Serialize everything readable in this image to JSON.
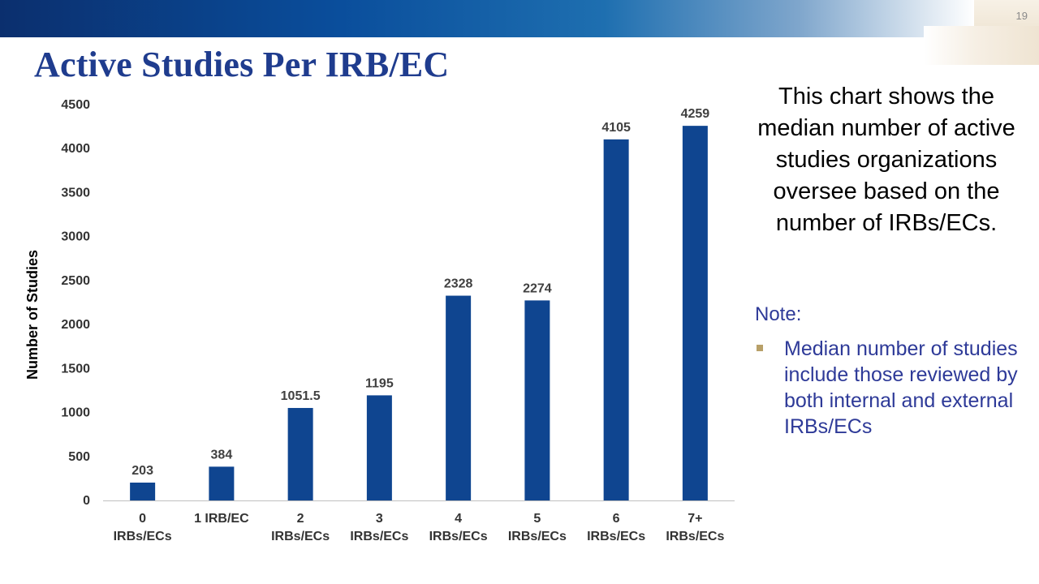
{
  "slide": {
    "number": "19",
    "title": "Active Studies Per IRB/EC"
  },
  "description": "This chart shows the median number of active studies organizations oversee based on the number of IRBs/ECs.",
  "note": {
    "heading": "Note:",
    "bullet": "Median number of studies include those reviewed by both internal and external IRBs/ECs"
  },
  "colors": {
    "bar": "#0f4590",
    "title": "#1f3c8e",
    "note_text": "#2e3a98",
    "bullet": "#b8a068"
  },
  "chart_data": {
    "type": "bar",
    "title": "",
    "xlabel": "",
    "ylabel": "Number of Studies",
    "ylim": [
      0,
      4500
    ],
    "yticks": [
      0,
      500,
      1000,
      1500,
      2000,
      2500,
      3000,
      3500,
      4000,
      4500
    ],
    "grid": false,
    "legend": "none",
    "categories": [
      [
        "0",
        "IRBs/ECs"
      ],
      [
        "1 IRB/EC"
      ],
      [
        "2",
        "IRBs/ECs"
      ],
      [
        "3",
        "IRBs/ECs"
      ],
      [
        "4",
        "IRBs/ECs"
      ],
      [
        "5",
        "IRBs/ECs"
      ],
      [
        "6",
        "IRBs/ECs"
      ],
      [
        "7+",
        "IRBs/ECs"
      ]
    ],
    "values": [
      203,
      384,
      1051.5,
      1195,
      2328,
      2274,
      4105,
      4259
    ],
    "data_labels": [
      "203",
      "384",
      "1051.5",
      "1195",
      "2328",
      "2274",
      "4105",
      "4259"
    ]
  }
}
